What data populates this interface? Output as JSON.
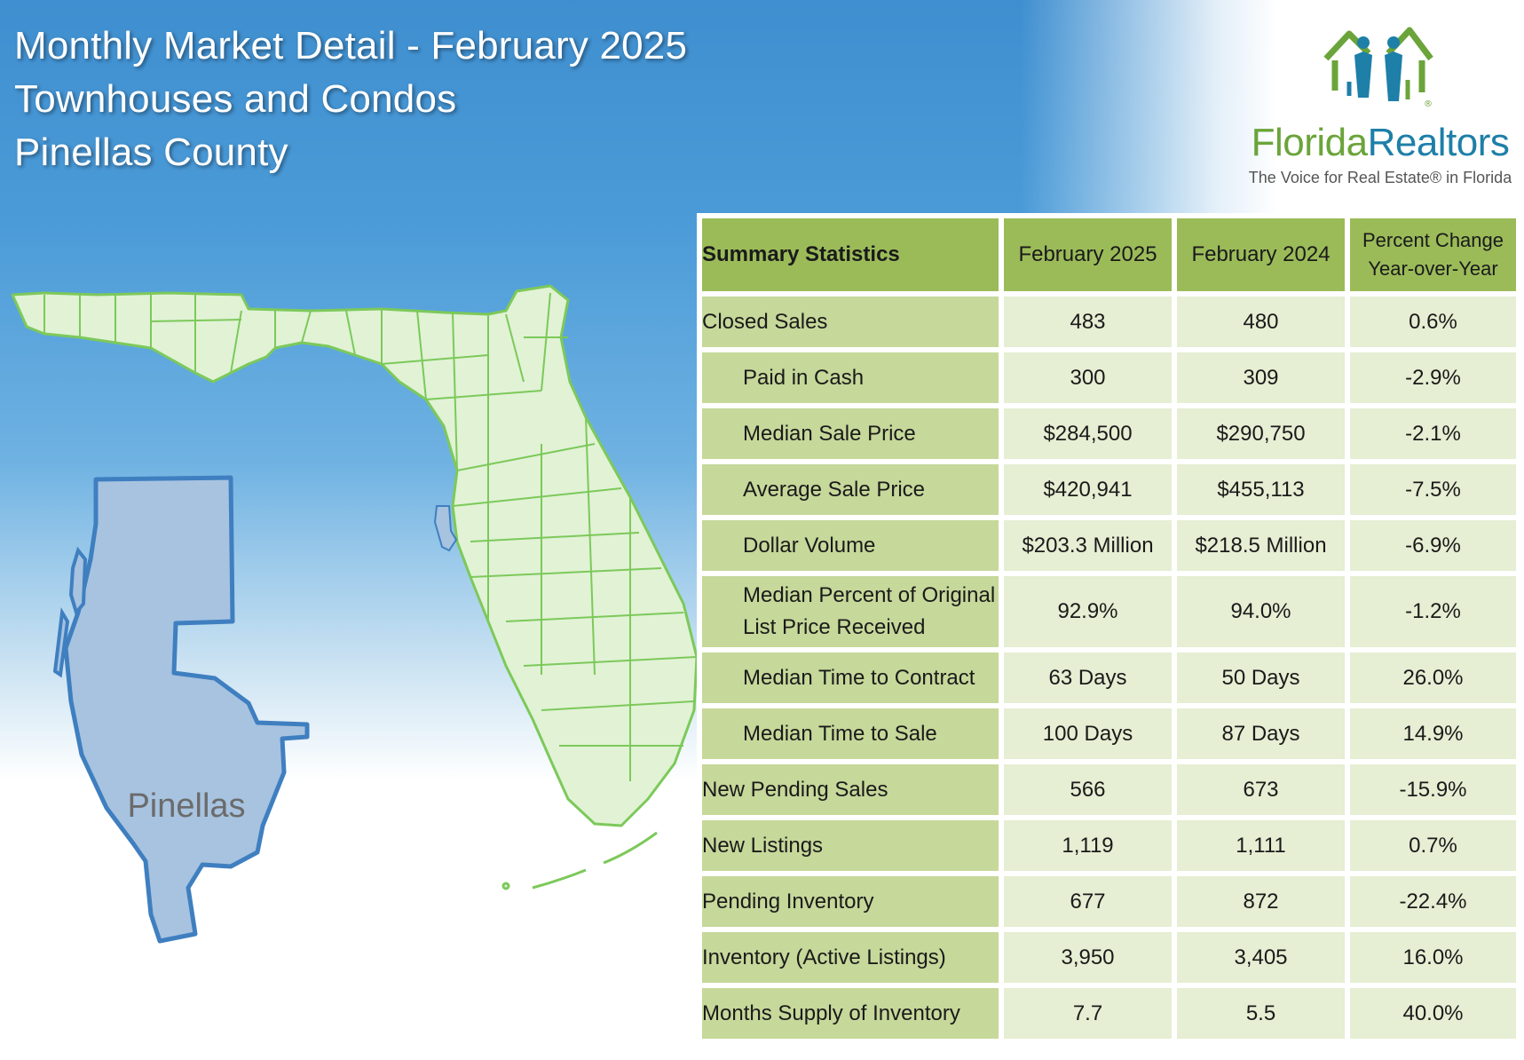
{
  "header": {
    "title_line1": "Monthly Market Detail - February 2025",
    "title_line2": "Townhouses and Condos",
    "title_line3": "Pinellas County"
  },
  "logo": {
    "name_part1": "Florida",
    "name_part2": "Realtors",
    "registered": "®",
    "tagline": "The Voice for Real Estate® in Florida"
  },
  "map": {
    "county_label": "Pinellas",
    "colors": {
      "state_fill": "#e1f2d5",
      "state_stroke": "#7cc95a",
      "county_fill": "#a7c3e0",
      "county_stroke": "#3f7fc0"
    }
  },
  "table": {
    "headers": {
      "label": "Summary Statistics",
      "col1": "February 2025",
      "col2": "February 2024",
      "col3_line1": "Percent Change",
      "col3_line2": "Year-over-Year"
    },
    "rows": [
      {
        "label": "Closed Sales",
        "v1": "483",
        "v2": "480",
        "pct": "0.6%"
      },
      {
        "label": "Paid in Cash",
        "v1": "300",
        "v2": "309",
        "pct": "-2.9%"
      },
      {
        "label": "Median Sale Price",
        "v1": "$284,500",
        "v2": "$290,750",
        "pct": "-2.1%"
      },
      {
        "label": "Average Sale Price",
        "v1": "$420,941",
        "v2": "$455,113",
        "pct": "-7.5%"
      },
      {
        "label": "Dollar Volume",
        "v1": "$203.3 Million",
        "v2": "$218.5 Million",
        "pct": "-6.9%"
      },
      {
        "label_line1": "Median Percent of Original",
        "label_line2": "List Price Received",
        "v1": "92.9%",
        "v2": "94.0%",
        "pct": "-1.2%"
      },
      {
        "label": "Median Time to Contract",
        "v1": "63 Days",
        "v2": "50 Days",
        "pct": "26.0%"
      },
      {
        "label": "Median Time to Sale",
        "v1": "100 Days",
        "v2": "87 Days",
        "pct": "14.9%"
      },
      {
        "label": "New Pending Sales",
        "v1": "566",
        "v2": "673",
        "pct": "-15.9%"
      },
      {
        "label": "New Listings",
        "v1": "1,119",
        "v2": "1,111",
        "pct": "0.7%"
      },
      {
        "label": "Pending Inventory",
        "v1": "677",
        "v2": "872",
        "pct": "-22.4%"
      },
      {
        "label": "Inventory (Active Listings)",
        "v1": "3,950",
        "v2": "3,405",
        "pct": "16.0%"
      },
      {
        "label": "Months Supply of Inventory",
        "v1": "7.7",
        "v2": "5.5",
        "pct": "40.0%"
      }
    ]
  }
}
